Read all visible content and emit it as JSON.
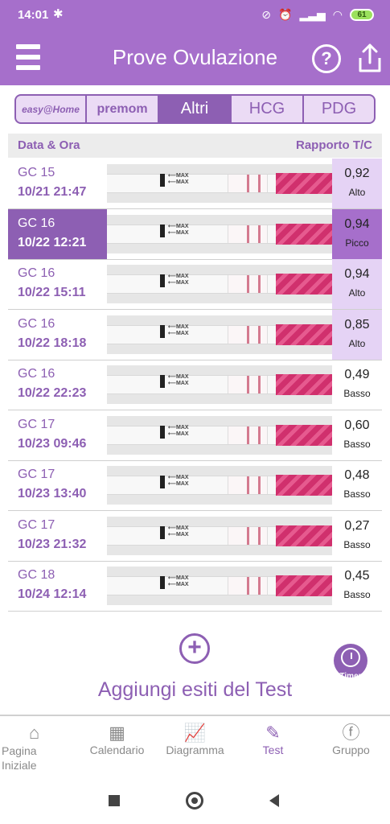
{
  "status_bar": {
    "time": "14:01",
    "battery": "61"
  },
  "header": {
    "title": "Prove Ovulazione"
  },
  "brand_tabs": [
    {
      "label": "easy@Home",
      "active": false
    },
    {
      "label": "premom",
      "active": false
    },
    {
      "label": "Altri",
      "active": true
    },
    {
      "label": "HCG",
      "active": false
    },
    {
      "label": "PDG",
      "active": false
    }
  ],
  "list_header": {
    "left": "Data & Ora",
    "right": "Rapporto T/C"
  },
  "strip_max_text": "MAX",
  "rows": [
    {
      "gc": "GC 15",
      "datetime": "10/21  21:47",
      "ratio": "0,92",
      "level": "Alto",
      "tone": "hi",
      "selected": false
    },
    {
      "gc": "GC 16",
      "datetime": "10/22  12:21",
      "ratio": "0,94",
      "level": "Picco",
      "tone": "pk",
      "selected": true
    },
    {
      "gc": "GC 16",
      "datetime": "10/22  15:11",
      "ratio": "0,94",
      "level": "Alto",
      "tone": "hi",
      "selected": false
    },
    {
      "gc": "GC 16",
      "datetime": "10/22  18:18",
      "ratio": "0,85",
      "level": "Alto",
      "tone": "hi",
      "selected": false
    },
    {
      "gc": "GC 16",
      "datetime": "10/22  22:23",
      "ratio": "0,49",
      "level": "Basso",
      "tone": "lo",
      "selected": false
    },
    {
      "gc": "GC 17",
      "datetime": "10/23  09:46",
      "ratio": "0,60",
      "level": "Basso",
      "tone": "lo",
      "selected": false
    },
    {
      "gc": "GC 17",
      "datetime": "10/23  13:40",
      "ratio": "0,48",
      "level": "Basso",
      "tone": "lo",
      "selected": false
    },
    {
      "gc": "GC 17",
      "datetime": "10/23  21:32",
      "ratio": "0,27",
      "level": "Basso",
      "tone": "lo",
      "selected": false
    },
    {
      "gc": "GC 18",
      "datetime": "10/24  12:14",
      "ratio": "0,45",
      "level": "Basso",
      "tone": "lo",
      "selected": false
    }
  ],
  "add_test": {
    "label": "Aggiungi esiti del Test",
    "icon": "plus-circle-icon"
  },
  "timer": {
    "label": "Timer",
    "icon": "stopwatch-icon"
  },
  "bottom_nav": [
    {
      "label": "Pagina Iniziale",
      "icon": "home-icon",
      "active": false
    },
    {
      "label": "Calendario",
      "icon": "calendar-icon",
      "active": false
    },
    {
      "label": "Diagramma",
      "icon": "chart-icon",
      "active": false
    },
    {
      "label": "Test",
      "icon": "test-strip-icon",
      "active": true
    },
    {
      "label": "Gruppo",
      "icon": "facebook-icon",
      "active": false
    }
  ],
  "colors": {
    "accent": "#a66fcb",
    "accent_dark": "#8d5fb3",
    "high_bg": "#e5d3f5",
    "strip_pink": "#d0306d"
  }
}
